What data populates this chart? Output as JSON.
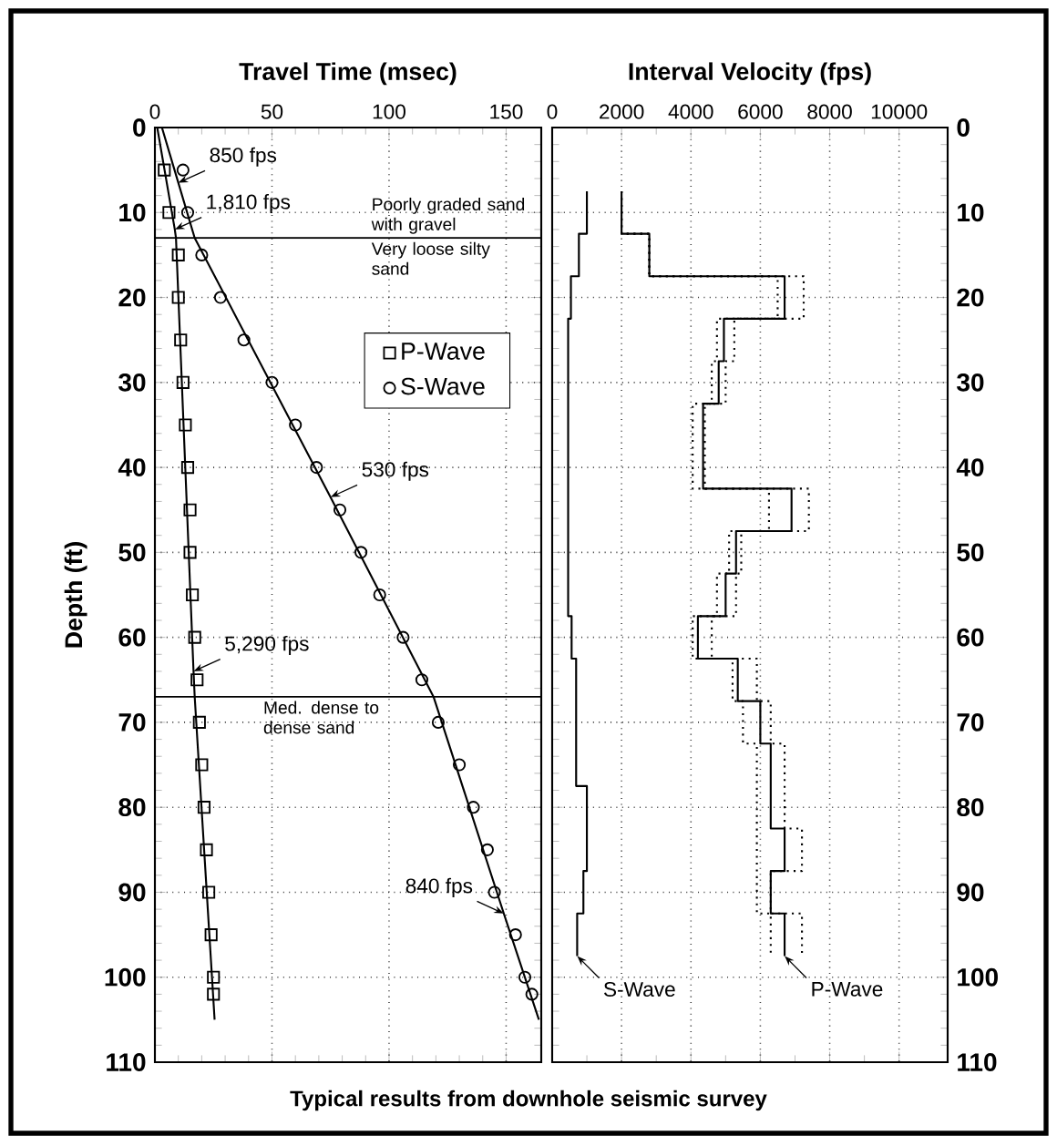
{
  "chart_data": [
    {
      "type": "scatter",
      "xlabel": "Travel Time (msec)",
      "ylabel": "Depth (ft)",
      "xlim": [
        0,
        165
      ],
      "ylim": [
        110,
        0
      ],
      "xticks": [
        0,
        50,
        100,
        150
      ],
      "yticks": [
        0,
        10,
        20,
        30,
        40,
        50,
        60,
        70,
        80,
        90,
        100,
        110
      ],
      "grid": true,
      "legend": "right",
      "series": [
        {
          "name": "P-Wave",
          "type": "scatter",
          "marker": "square",
          "color": "#000000",
          "x": [
            4,
            6,
            10,
            10,
            11,
            12,
            13,
            14,
            15,
            15,
            16,
            17,
            18,
            19,
            20,
            21,
            22,
            23,
            24,
            25,
            25
          ],
          "values": [
            5,
            10,
            15,
            20,
            25,
            30,
            35,
            40,
            45,
            50,
            55,
            60,
            65,
            70,
            75,
            80,
            85,
            90,
            95,
            100,
            102
          ]
        },
        {
          "name": "S-Wave",
          "type": "scatter",
          "marker": "circle",
          "color": "#000000",
          "x": [
            12,
            14,
            20,
            28,
            38,
            50,
            60,
            69,
            79,
            88,
            96,
            106,
            114,
            121,
            130,
            136,
            142,
            145,
            154,
            158,
            161
          ],
          "values": [
            5,
            10,
            15,
            20,
            25,
            30,
            35,
            40,
            45,
            50,
            55,
            60,
            65,
            70,
            75,
            80,
            85,
            90,
            95,
            100,
            102
          ]
        },
        {
          "type": "line",
          "color": "#000000",
          "x": [
            1,
            8.5,
            9,
            16.5,
            17,
            25.5
          ],
          "values": [
            0,
            12,
            13,
            64,
            67,
            105
          ]
        },
        {
          "type": "line",
          "color": "#000000",
          "x": [
            3,
            10,
            17,
            75,
            119,
            149,
            164
          ],
          "values": [
            0,
            6.5,
            13,
            43.5,
            67,
            92.5,
            105
          ]
        }
      ],
      "ref_lines": [
        {
          "axis": "y",
          "value": 13,
          "label": "Very loose silty sand"
        },
        {
          "axis": "y",
          "value": 67,
          "label": "Med. dense to dense sand"
        }
      ],
      "annotations": [
        {
          "text": "850 fps",
          "x": 10,
          "y": 6.5
        },
        {
          "text": "1,810 fps",
          "x": 8.5,
          "y": 12
        },
        {
          "text": "530 fps",
          "x": 75,
          "y": 43.5
        },
        {
          "text": "5,290 fps",
          "x": 16.5,
          "y": 64
        },
        {
          "text": "840 fps",
          "x": 149,
          "y": 92.5
        },
        "Poorly graded sand with gravel"
      ]
    },
    {
      "type": "line",
      "xlabel": "Interval Velocity (fps)",
      "xlim": [
        0,
        11400
      ],
      "ylim": [
        110,
        0
      ],
      "xticks": [
        0,
        2000,
        4000,
        6000,
        8000,
        10000
      ],
      "yticks": [
        0,
        10,
        20,
        30,
        40,
        50,
        60,
        70,
        80,
        90,
        100,
        110
      ],
      "grid": true,
      "series": [
        {
          "color": "#000000",
          "x": [
            1000,
            1000,
            770,
            770,
            540,
            540,
            460,
            460,
            560,
            560,
            690,
            690,
            1000,
            1000,
            900,
            900,
            720,
            720
          ],
          "values": [
            7.5,
            12.5,
            12.5,
            17.5,
            17.5,
            22.5,
            22.5,
            57.5,
            57.5,
            62.5,
            62.5,
            77.5,
            77.5,
            87.5,
            87.5,
            92.5,
            92.5,
            97.5
          ]
        },
        {
          "color": "#000000",
          "x": [
            2000,
            2000,
            2800,
            2800,
            6700,
            6700,
            4950,
            4950,
            4800,
            4800,
            4350,
            4350,
            6900,
            6900,
            5300,
            5300,
            5000,
            5000,
            4200,
            4200,
            5350,
            5350,
            6000,
            6000,
            6300,
            6300,
            6700,
            6700,
            6300,
            6300,
            6700,
            6700
          ],
          "values": [
            7.5,
            12.5,
            12.5,
            17.5,
            17.5,
            22.5,
            22.5,
            27.5,
            27.5,
            32.5,
            32.5,
            42.5,
            42.5,
            47.5,
            47.5,
            52.5,
            52.5,
            57.5,
            57.5,
            62.5,
            62.5,
            67.5,
            67.5,
            72.5,
            72.5,
            82.5,
            82.5,
            87.5,
            87.5,
            92.5,
            92.5,
            97.5
          ]
        },
        {
          "color": "#000000",
          "line_style": "dotted",
          "x": [
            2000,
            2000,
            2800,
            2800,
            7250,
            7250,
            5250,
            5250,
            5000,
            5000,
            4400,
            4400,
            7400,
            7400,
            5450,
            5450,
            5300,
            5300,
            4600,
            4600,
            5900,
            5900,
            6300,
            6300,
            6700,
            6700,
            7200,
            7200,
            6300,
            6300,
            7200,
            7200
          ],
          "values": [
            7.5,
            12.5,
            12.5,
            17.5,
            17.5,
            22.5,
            22.5,
            27.5,
            27.5,
            32.5,
            32.5,
            42.5,
            42.5,
            47.5,
            47.5,
            52.5,
            52.5,
            57.5,
            57.5,
            62.5,
            62.5,
            67.5,
            67.5,
            72.5,
            72.5,
            82.5,
            82.5,
            87.5,
            87.5,
            92.5,
            92.5,
            97.5
          ]
        },
        {
          "color": "#000000",
          "line_style": "dotted",
          "x": [
            2000,
            2000,
            2800,
            2800,
            6500,
            6500,
            4750,
            4750,
            4600,
            4600,
            4050,
            4050,
            6250,
            6250,
            5100,
            5100,
            4750,
            4750,
            4050,
            4050,
            5200,
            5200,
            5500,
            5500,
            5900,
            5900,
            6300,
            6300
          ],
          "values": [
            7.5,
            12.5,
            12.5,
            17.5,
            17.5,
            22.5,
            22.5,
            27.5,
            27.5,
            32.5,
            32.5,
            42.5,
            42.5,
            47.5,
            47.5,
            52.5,
            52.5,
            57.5,
            57.5,
            62.5,
            62.5,
            67.5,
            67.5,
            72.5,
            72.5,
            92.5,
            92.5,
            97.5
          ]
        }
      ],
      "annotations": [
        {
          "text": "S-Wave",
          "x": 720,
          "y": 97.5
        },
        {
          "text": "P-Wave",
          "x": 6700,
          "y": 97.5
        },
        "Typical results from downhole seismic survey"
      ]
    }
  ]
}
